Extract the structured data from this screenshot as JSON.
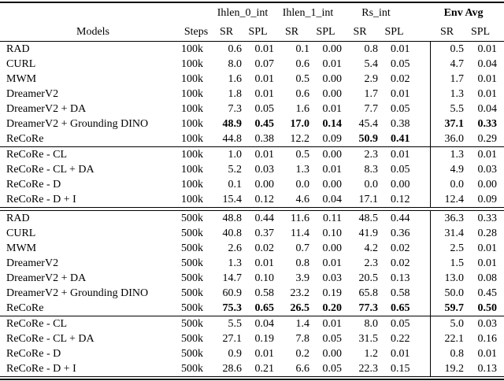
{
  "colors": {
    "text": "#000000",
    "background": "#ffffff",
    "rule": "#000000"
  },
  "table": {
    "group_header": {
      "groups": [
        {
          "label": "Ihlen_0_int",
          "bold": false
        },
        {
          "label": "Ihlen_1_int",
          "bold": false
        },
        {
          "label": "Rs_int",
          "bold": false
        },
        {
          "label": "Env Avg",
          "bold": true
        }
      ]
    },
    "columns": {
      "models": "Models",
      "steps": "Steps",
      "sr": "SR",
      "spl": "SPL"
    },
    "sections": [
      {
        "name": "100k-main",
        "separator_after": "thin",
        "rows": [
          {
            "model": "RAD",
            "steps": "100k",
            "values": [
              "0.6",
              "0.01",
              "0.1",
              "0.00",
              "0.8",
              "0.01",
              "0.5",
              "0.01"
            ],
            "bold": []
          },
          {
            "model": "CURL",
            "steps": "100k",
            "values": [
              "8.0",
              "0.07",
              "0.6",
              "0.01",
              "5.4",
              "0.05",
              "4.7",
              "0.04"
            ],
            "bold": []
          },
          {
            "model": "MWM",
            "steps": "100k",
            "values": [
              "1.6",
              "0.01",
              "0.5",
              "0.00",
              "2.9",
              "0.02",
              "1.7",
              "0.01"
            ],
            "bold": []
          },
          {
            "model": "DreamerV2",
            "steps": "100k",
            "values": [
              "1.8",
              "0.01",
              "0.6",
              "0.00",
              "1.7",
              "0.01",
              "1.3",
              "0.01"
            ],
            "bold": []
          },
          {
            "model": "DreamerV2 + DA",
            "steps": "100k",
            "values": [
              "7.3",
              "0.05",
              "1.6",
              "0.01",
              "7.7",
              "0.05",
              "5.5",
              "0.04"
            ],
            "bold": []
          },
          {
            "model": "DreamerV2 + Grounding DINO",
            "steps": "100k",
            "values": [
              "48.9",
              "0.45",
              "17.0",
              "0.14",
              "45.4",
              "0.38",
              "37.1",
              "0.33"
            ],
            "bold": [
              0,
              1,
              2,
              3,
              6,
              7
            ]
          },
          {
            "model": "ReCoRe",
            "steps": "100k",
            "values": [
              "44.8",
              "0.38",
              "12.2",
              "0.09",
              "50.9",
              "0.41",
              "36.0",
              "0.29"
            ],
            "bold": [
              4,
              5
            ]
          }
        ]
      },
      {
        "name": "100k-ablations",
        "separator_after": "double",
        "rows": [
          {
            "model": "ReCoRe - CL",
            "steps": "100k",
            "values": [
              "1.0",
              "0.01",
              "0.5",
              "0.00",
              "2.3",
              "0.01",
              "1.3",
              "0.01"
            ],
            "bold": []
          },
          {
            "model": "ReCoRe - CL + DA",
            "steps": "100k",
            "values": [
              "5.2",
              "0.03",
              "1.3",
              "0.01",
              "8.3",
              "0.05",
              "4.9",
              "0.03"
            ],
            "bold": []
          },
          {
            "model": "ReCoRe - D",
            "steps": "100k",
            "values": [
              "0.1",
              "0.00",
              "0.0",
              "0.00",
              "0.0",
              "0.00",
              "0.0",
              "0.00"
            ],
            "bold": []
          },
          {
            "model": "ReCoRe - D + I",
            "steps": "100k",
            "values": [
              "15.4",
              "0.12",
              "4.6",
              "0.04",
              "17.1",
              "0.12",
              "12.4",
              "0.09"
            ],
            "bold": []
          }
        ]
      },
      {
        "name": "500k-main",
        "separator_after": "thin",
        "rows": [
          {
            "model": "RAD",
            "steps": "500k",
            "values": [
              "48.8",
              "0.44",
              "11.6",
              "0.11",
              "48.5",
              "0.44",
              "36.3",
              "0.33"
            ],
            "bold": []
          },
          {
            "model": "CURL",
            "steps": "500k",
            "values": [
              "40.8",
              "0.37",
              "11.4",
              "0.10",
              "41.9",
              "0.36",
              "31.4",
              "0.28"
            ],
            "bold": []
          },
          {
            "model": "MWM",
            "steps": "500k",
            "values": [
              "2.6",
              "0.02",
              "0.7",
              "0.00",
              "4.2",
              "0.02",
              "2.5",
              "0.01"
            ],
            "bold": []
          },
          {
            "model": "DreamerV2",
            "steps": "500k",
            "values": [
              "1.3",
              "0.01",
              "0.8",
              "0.01",
              "2.3",
              "0.02",
              "1.5",
              "0.01"
            ],
            "bold": []
          },
          {
            "model": "DreamerV2 + DA",
            "steps": "500k",
            "values": [
              "14.7",
              "0.10",
              "3.9",
              "0.03",
              "20.5",
              "0.13",
              "13.0",
              "0.08"
            ],
            "bold": []
          },
          {
            "model": "DreamerV2 + Grounding DINO",
            "steps": "500k",
            "values": [
              "60.9",
              "0.58",
              "23.2",
              "0.19",
              "65.8",
              "0.58",
              "50.0",
              "0.45"
            ],
            "bold": []
          },
          {
            "model": "ReCoRe",
            "steps": "500k",
            "values": [
              "75.3",
              "0.65",
              "26.5",
              "0.20",
              "77.3",
              "0.65",
              "59.7",
              "0.50"
            ],
            "bold": [
              0,
              1,
              2,
              3,
              4,
              5,
              6,
              7
            ]
          }
        ]
      },
      {
        "name": "500k-ablations",
        "separator_after": "bottom",
        "rows": [
          {
            "model": "ReCoRe - CL",
            "steps": "500k",
            "values": [
              "5.5",
              "0.04",
              "1.4",
              "0.01",
              "8.0",
              "0.05",
              "5.0",
              "0.03"
            ],
            "bold": []
          },
          {
            "model": "ReCoRe - CL + DA",
            "steps": "500k",
            "values": [
              "27.1",
              "0.19",
              "7.8",
              "0.05",
              "31.5",
              "0.22",
              "22.1",
              "0.16"
            ],
            "bold": []
          },
          {
            "model": "ReCoRe - D",
            "steps": "500k",
            "values": [
              "0.9",
              "0.01",
              "0.2",
              "0.00",
              "1.2",
              "0.01",
              "0.8",
              "0.01"
            ],
            "bold": []
          },
          {
            "model": "ReCoRe - D + I",
            "steps": "500k",
            "values": [
              "28.6",
              "0.21",
              "6.6",
              "0.05",
              "22.3",
              "0.15",
              "19.2",
              "0.13"
            ],
            "bold": []
          }
        ]
      }
    ]
  }
}
